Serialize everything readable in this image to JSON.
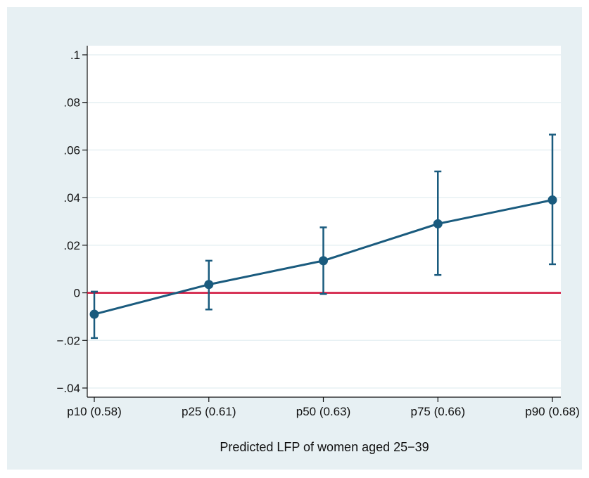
{
  "chart_data": {
    "type": "line",
    "title": "",
    "xlabel": "Predicted LFP of women aged 25−39",
    "ylabel": "",
    "categories": [
      "p10 (0.58)",
      "p25 (0.61)",
      "p50 (0.63)",
      "p75 (0.66)",
      "p90 (0.68)"
    ],
    "series": [
      {
        "values": [
          -0.009,
          0.0035,
          0.0135,
          0.029,
          0.039
        ],
        "ci_low": [
          -0.019,
          -0.007,
          -0.0005,
          0.0075,
          0.012
        ],
        "ci_high": [
          0.0005,
          0.0135,
          0.0275,
          0.051,
          0.0665
        ]
      }
    ],
    "yticks": [
      ".1",
      ".08",
      ".06",
      ".04",
      ".02",
      "0",
      "−.02",
      "−.04"
    ],
    "ytick_values": [
      0.1,
      0.08,
      0.06,
      0.04,
      0.02,
      0,
      -0.02,
      -0.04
    ],
    "ylim": [
      -0.04,
      0.1
    ],
    "reference_line": {
      "y": 0,
      "color": "#d0103a"
    },
    "grid": true,
    "colors": {
      "series": "#1a5b7e",
      "background": "#e7f0f3",
      "plot_area": "#ffffff",
      "grid": "#e7f0f3"
    }
  }
}
